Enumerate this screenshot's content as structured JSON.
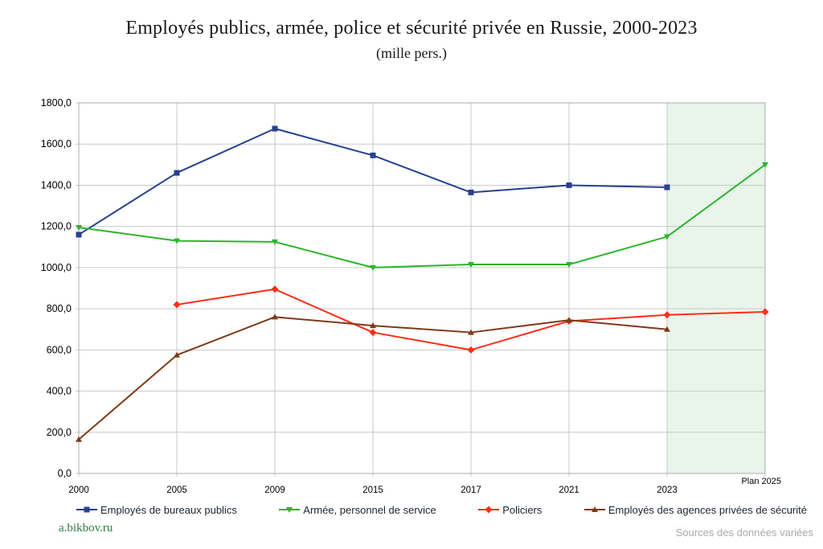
{
  "title": "Employés publics, armée, police et sécurité privée en Russie, 2000-2023",
  "subtitle": "(mille pers.)",
  "footer": {
    "credit": "a.bikbov.ru",
    "credit_color": "#2f7d3e",
    "sources": "Sources des données variées"
  },
  "chart_data": {
    "type": "line",
    "title": "Employés publics, armée, police et sécurité privée en Russie, 2000-2023",
    "subtitle": "(mille pers.)",
    "categories": [
      "2000",
      "2005",
      "2009",
      "2015",
      "2017",
      "2021",
      "2023",
      "Plan 2025"
    ],
    "series": [
      {
        "name": "Employés de bureaux publics",
        "color": "#27418f",
        "marker": "square",
        "values": [
          1160,
          1460,
          1675,
          1545,
          1365,
          1400,
          1390,
          null
        ]
      },
      {
        "name": "Armée, personnel de service",
        "color": "#2cb52c",
        "marker": "triangle-down",
        "values": [
          1195,
          1130,
          1125,
          1000,
          1015,
          1015,
          1150,
          1500
        ]
      },
      {
        "name": "Policiers",
        "color": "#ff2d16",
        "marker": "diamond",
        "values": [
          null,
          820,
          895,
          685,
          600,
          740,
          770,
          785
        ]
      },
      {
        "name": "Employés des agences privées de sécurité",
        "color": "#7e3a17",
        "marker": "triangle-up",
        "values": [
          165,
          575,
          760,
          718,
          685,
          745,
          700,
          null
        ]
      }
    ],
    "xlabel": "",
    "ylabel": "",
    "ylim": [
      0,
      1800
    ],
    "y_tick_step": 200,
    "y_tick_labels": [
      "0,0",
      "200,0",
      "400,0",
      "600,0",
      "800,0",
      "1000,0",
      "1200,0",
      "1400,0",
      "1600,0",
      "1800,0"
    ],
    "grid": true,
    "legend_position": "bottom",
    "plan_region": {
      "start_category": "2023",
      "end_category": "Plan 2025",
      "fill": "#e9f5eb"
    }
  }
}
